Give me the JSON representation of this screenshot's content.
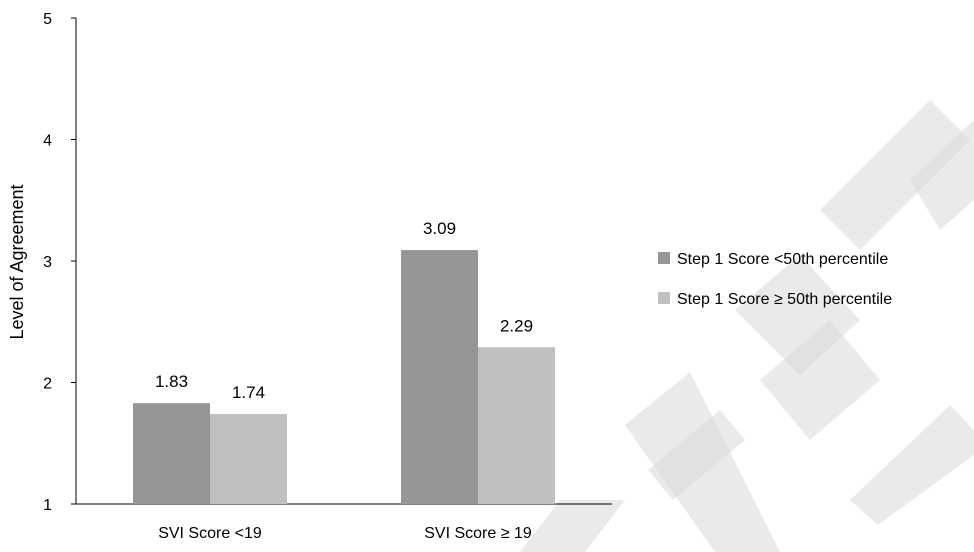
{
  "chart_data": {
    "type": "bar",
    "title": "",
    "xlabel": "",
    "ylabel": "Level of Agreement",
    "ylim": [
      1,
      5
    ],
    "yticks": [
      1,
      2,
      3,
      4,
      5
    ],
    "grid": false,
    "legend_position": "right",
    "categories": [
      "SVI Score <19",
      "SVI Score ≥ 19"
    ],
    "series": [
      {
        "name": "Step 1 Score <50th percentile",
        "values": [
          1.83,
          3.09
        ],
        "color": "#969696"
      },
      {
        "name": "Step 1 Score ≥ 50th percentile",
        "values": [
          1.74,
          2.29
        ],
        "color": "#bfbfbf"
      }
    ],
    "data_labels": [
      [
        "1.83",
        "3.09"
      ],
      [
        "1.74",
        "2.29"
      ]
    ]
  },
  "watermark": {
    "text": "ACCEPTED",
    "color": "#d9d9d9"
  }
}
